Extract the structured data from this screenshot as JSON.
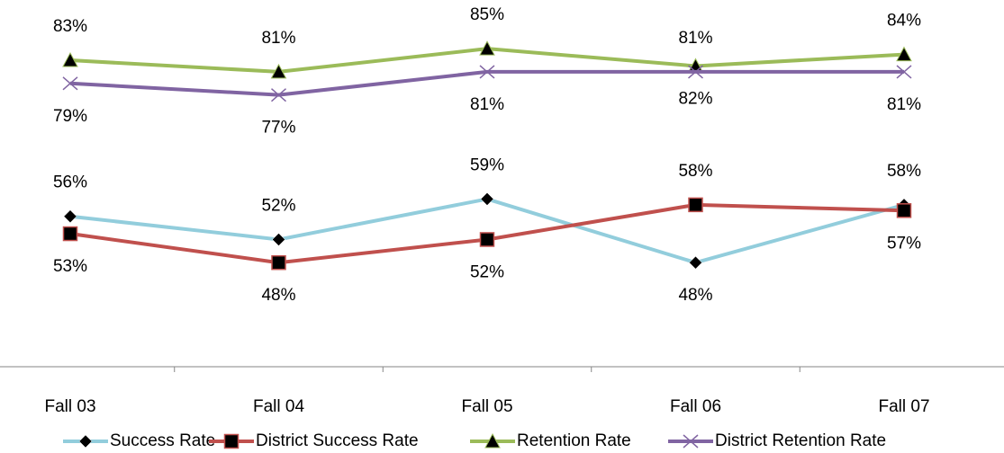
{
  "chart_data": {
    "type": "line",
    "categories": [
      "Fall 03",
      "Fall 04",
      "Fall 05",
      "Fall 06",
      "Fall 07"
    ],
    "ylim": [
      30,
      90
    ],
    "series": [
      {
        "name": "Success Rate",
        "color": "#92cddc",
        "marker": "diamond",
        "values": [
          56,
          52,
          59,
          48,
          58
        ]
      },
      {
        "name": "District Success Rate",
        "color": "#c0504d",
        "marker": "square",
        "values": [
          53,
          48,
          52,
          58,
          57
        ]
      },
      {
        "name": "Retention Rate",
        "color": "#9bbb59",
        "marker": "triangle",
        "values": [
          83,
          81,
          85,
          82,
          84
        ]
      },
      {
        "name": "District Retention Rate",
        "color": "#8064a2",
        "marker": "x",
        "values": [
          79,
          77,
          81,
          81,
          81
        ]
      }
    ],
    "value_labels": [
      [
        "56%",
        "52%",
        "59%",
        "48%",
        "58%"
      ],
      [
        "53%",
        "48%",
        "52%",
        "58%",
        "57%"
      ],
      [
        "83%",
        "81%",
        "85%",
        "82%",
        "84%"
      ],
      [
        "79%",
        "77%",
        "81%",
        "81%",
        "81%"
      ]
    ],
    "legend": "bottom"
  }
}
